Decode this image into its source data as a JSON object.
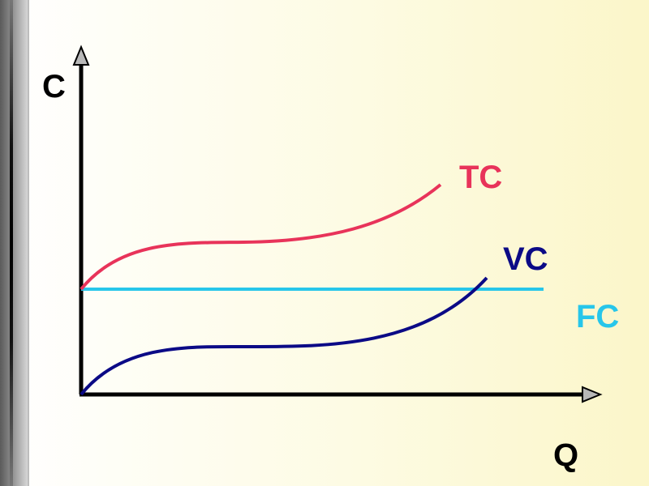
{
  "axes": {
    "y_label": "C",
    "x_label": "Q"
  },
  "curves": {
    "tc": {
      "label": "TC",
      "color": "#e8335a"
    },
    "vc": {
      "label": "VC",
      "color": "#0b0a86"
    },
    "fc": {
      "label": "FC",
      "color": "#27c6ea"
    }
  },
  "colors": {
    "axis": "#000000",
    "background": "#fdfbe3"
  }
}
